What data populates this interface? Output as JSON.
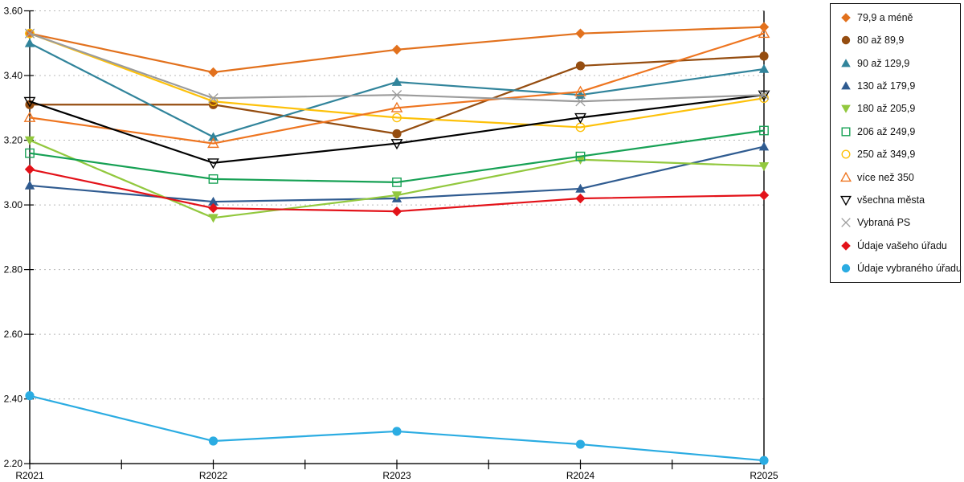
{
  "chart_data": {
    "type": "line",
    "title": "",
    "xlabel": "",
    "ylabel": "",
    "x_categories": [
      "R2021",
      "R2022",
      "R2023",
      "R2024",
      "R2025"
    ],
    "ylim": [
      2.2,
      3.6
    ],
    "ytick_step": 0.2,
    "ytick_labels": [
      "3.60",
      "3.40",
      "3.20",
      "3.00",
      "2.80",
      "2.60",
      "2.40",
      "2.20"
    ],
    "grid": "horizontal-dotted",
    "grid_color": "#b8b8b8",
    "axis_color": "#000000",
    "legend_position": "right",
    "x_minor_ticks": true,
    "series": [
      {
        "name": "79,9 a méně",
        "marker": "diamond-filled",
        "color": "#e2711d",
        "values": [
          3.53,
          3.41,
          3.48,
          3.53,
          3.55
        ]
      },
      {
        "name": "80 až 89,9",
        "marker": "circle-filled",
        "color": "#954d10",
        "values": [
          3.31,
          3.31,
          3.22,
          3.43,
          3.46
        ]
      },
      {
        "name": "90 až 129,9",
        "marker": "triangle-up-filled",
        "color": "#31849b",
        "values": [
          3.5,
          3.21,
          3.38,
          3.34,
          3.42
        ]
      },
      {
        "name": "130 až 179,9",
        "marker": "triangle-up-filled",
        "color": "#2f5b90",
        "values": [
          3.06,
          3.01,
          3.02,
          3.05,
          3.18
        ]
      },
      {
        "name": "180 až 205,9",
        "marker": "triangle-down-filled",
        "color": "#92c83e",
        "values": [
          3.2,
          2.96,
          3.03,
          3.14,
          3.12
        ]
      },
      {
        "name": "206 až 249,9",
        "marker": "square-open",
        "color": "#17a155",
        "values": [
          3.16,
          3.08,
          3.07,
          3.15,
          3.23
        ]
      },
      {
        "name": "250 až 349,9",
        "marker": "circle-open",
        "color": "#fdc10a",
        "values": [
          3.53,
          3.32,
          3.27,
          3.24,
          3.33
        ]
      },
      {
        "name": "více než 350",
        "marker": "triangle-up-open",
        "color": "#ee7520",
        "values": [
          3.27,
          3.19,
          3.3,
          3.35,
          3.53
        ]
      },
      {
        "name": "všechna města",
        "marker": "triangle-down-open",
        "color": "#000000",
        "values": [
          3.32,
          3.13,
          3.19,
          3.27,
          3.34
        ]
      },
      {
        "name": "Vybraná PS",
        "marker": "x",
        "color": "#9b9b9b",
        "values": [
          3.53,
          3.33,
          3.34,
          3.32,
          3.34
        ]
      },
      {
        "name": "Údaje vašeho úřadu",
        "marker": "diamond-filled",
        "color": "#e31219",
        "values": [
          3.11,
          2.99,
          2.98,
          3.02,
          3.03
        ]
      },
      {
        "name": "Údaje vybraného úřadu",
        "marker": "circle-filled",
        "color": "#2bace2",
        "values": [
          2.41,
          2.27,
          2.3,
          2.26,
          2.21
        ]
      }
    ]
  }
}
